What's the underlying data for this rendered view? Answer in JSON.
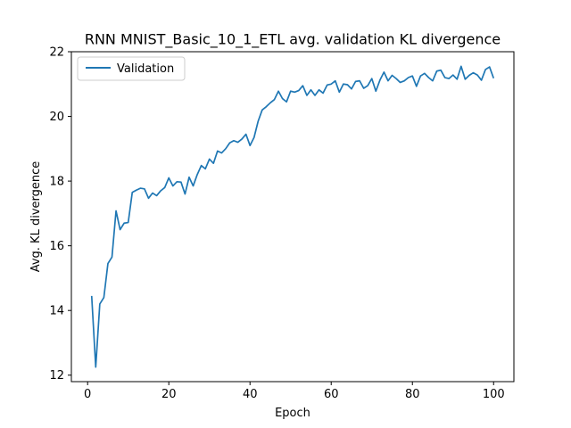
{
  "chart_data": {
    "type": "line",
    "title": "RNN MNIST_Basic_10_1_ETL avg. validation KL divergence",
    "xlabel": "Epoch",
    "ylabel": "Avg. KL divergence",
    "xlim": [
      -4,
      105
    ],
    "ylim": [
      11.8,
      22.0
    ],
    "xticks": [
      0,
      20,
      40,
      60,
      80,
      100
    ],
    "yticks": [
      12,
      14,
      16,
      18,
      20,
      22
    ],
    "grid": false,
    "legend": "top-left",
    "series": [
      {
        "name": "Validation",
        "color": "#1f77b4",
        "x": [
          1,
          2,
          3,
          4,
          5,
          6,
          7,
          8,
          9,
          10,
          11,
          12,
          13,
          14,
          15,
          16,
          17,
          18,
          19,
          20,
          21,
          22,
          23,
          24,
          25,
          26,
          27,
          28,
          29,
          30,
          31,
          32,
          33,
          34,
          35,
          36,
          37,
          38,
          39,
          40,
          41,
          42,
          43,
          44,
          45,
          46,
          47,
          48,
          49,
          50,
          51,
          52,
          53,
          54,
          55,
          56,
          57,
          58,
          59,
          60,
          61,
          62,
          63,
          64,
          65,
          66,
          67,
          68,
          69,
          70,
          71,
          72,
          73,
          74,
          75,
          76,
          77,
          78,
          79,
          80,
          81,
          82,
          83,
          84,
          85,
          86,
          87,
          88,
          89,
          90,
          91,
          92,
          93,
          94,
          95,
          96,
          97,
          98,
          99,
          100
        ],
        "values": [
          14.45,
          12.25,
          14.2,
          14.4,
          15.45,
          15.65,
          17.08,
          16.5,
          16.7,
          16.72,
          17.65,
          17.72,
          17.78,
          17.76,
          17.47,
          17.63,
          17.55,
          17.7,
          17.8,
          18.1,
          17.85,
          17.98,
          17.97,
          17.6,
          18.12,
          17.85,
          18.2,
          18.48,
          18.38,
          18.68,
          18.55,
          18.93,
          18.87,
          19.0,
          19.18,
          19.25,
          19.2,
          19.3,
          19.45,
          19.1,
          19.35,
          19.85,
          20.2,
          20.3,
          20.42,
          20.52,
          20.78,
          20.55,
          20.45,
          20.78,
          20.75,
          20.8,
          20.95,
          20.65,
          20.82,
          20.65,
          20.82,
          20.72,
          20.97,
          21.0,
          21.1,
          20.75,
          21.0,
          20.98,
          20.85,
          21.08,
          21.1,
          20.87,
          20.95,
          21.17,
          20.78,
          21.12,
          21.37,
          21.1,
          21.27,
          21.17,
          21.05,
          21.1,
          21.2,
          21.25,
          20.93,
          21.25,
          21.33,
          21.2,
          21.1,
          21.4,
          21.43,
          21.2,
          21.17,
          21.28,
          21.15,
          21.55,
          21.15,
          21.27,
          21.35,
          21.28,
          21.12,
          21.45,
          21.53,
          21.18
        ]
      }
    ]
  }
}
